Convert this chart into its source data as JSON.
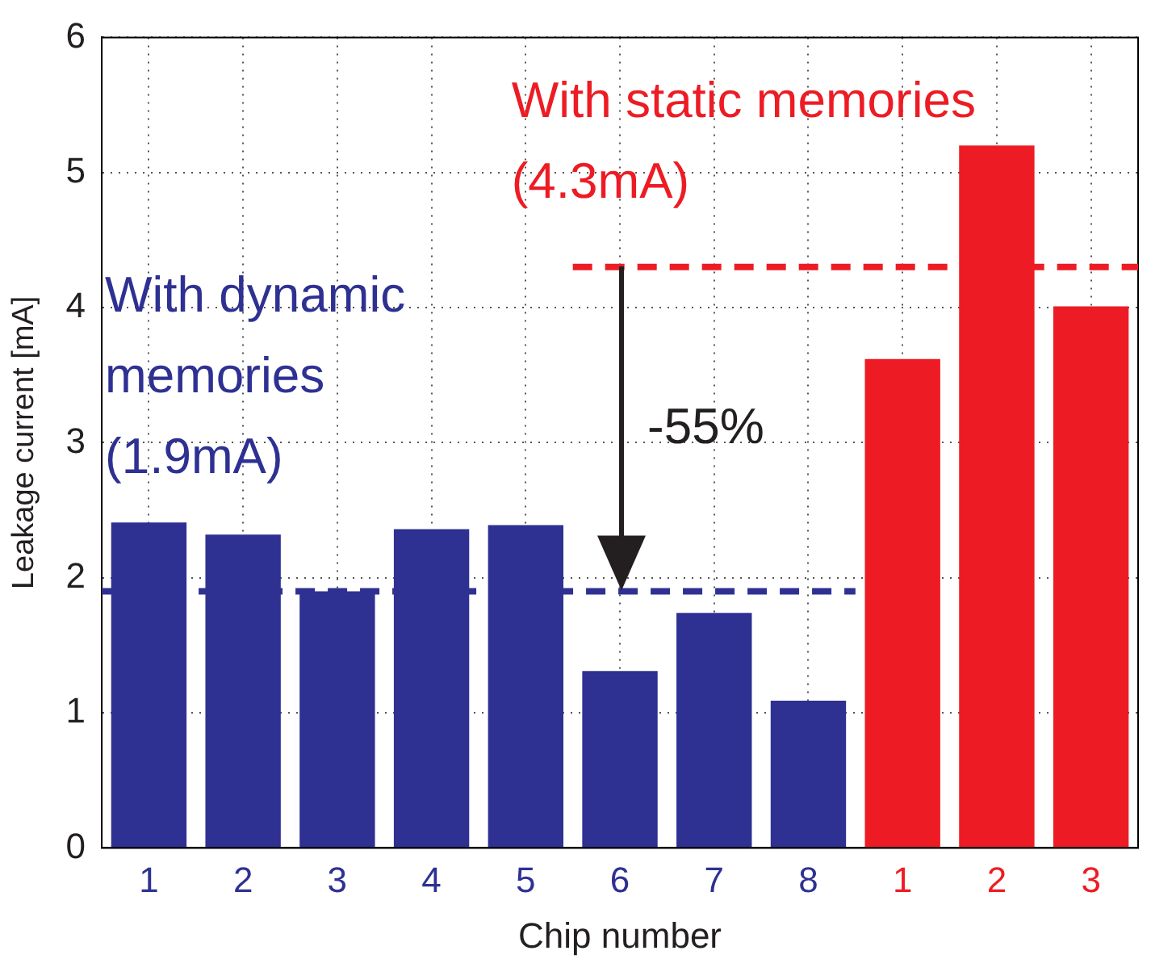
{
  "chart_data": {
    "type": "bar",
    "xlabel": "Chip number",
    "ylabel": "Leakage current [mA]",
    "categories": [
      "1",
      "2",
      "3",
      "4",
      "5",
      "6",
      "7",
      "8",
      "1",
      "2",
      "3"
    ],
    "values": [
      2.41,
      2.32,
      1.9,
      2.36,
      2.39,
      1.31,
      1.74,
      1.09,
      3.62,
      5.2,
      4.01
    ],
    "colors": [
      "#2e3192",
      "#2e3192",
      "#2e3192",
      "#2e3192",
      "#2e3192",
      "#2e3192",
      "#2e3192",
      "#2e3192",
      "#ed1c24",
      "#ed1c24",
      "#ed1c24"
    ],
    "ylim": [
      0,
      6
    ],
    "yticks": [
      0,
      1,
      2,
      3,
      4,
      5,
      6
    ],
    "grid": true,
    "legend": false,
    "ref_lines": [
      {
        "axis": "y",
        "value": 1.9,
        "label": "With dynamic memories (1.9mA)",
        "color": "#2e3192",
        "line_style": "dashed"
      },
      {
        "axis": "y",
        "value": 4.3,
        "label": "With static memories (4.3mA)",
        "color": "#ed1c24",
        "line_style": "dashed"
      }
    ],
    "annotations": [
      "-55%"
    ]
  }
}
